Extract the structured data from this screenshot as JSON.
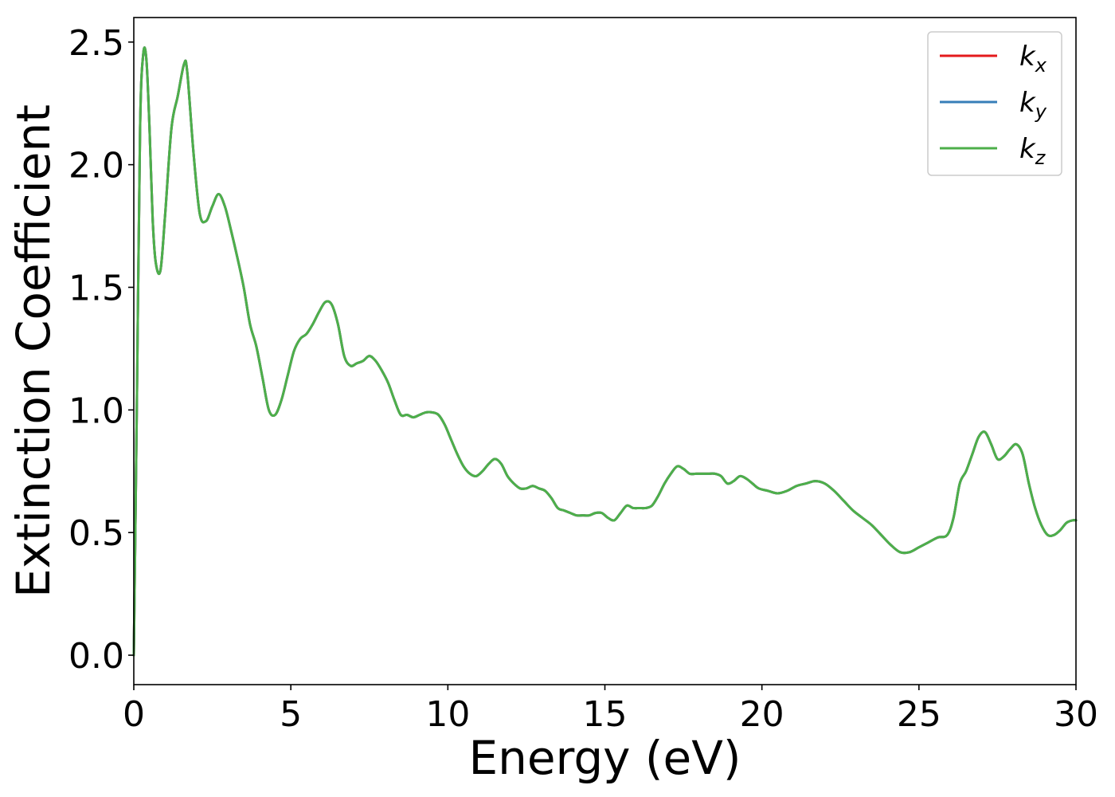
{
  "chart_data": {
    "type": "line",
    "title": "",
    "xlabel": "Energy (eV)",
    "ylabel": "Extinction Coefficient",
    "xlim": [
      0,
      30
    ],
    "ylim": [
      -0.12,
      2.6
    ],
    "xticks": [
      0,
      5,
      10,
      15,
      20,
      25,
      30
    ],
    "xtick_labels": [
      "0",
      "5",
      "10",
      "15",
      "20",
      "25",
      "30"
    ],
    "yticks": [
      0.0,
      0.5,
      1.0,
      1.5,
      2.0,
      2.5
    ],
    "ytick_labels": [
      "0.0",
      "0.5",
      "1.0",
      "1.5",
      "2.0",
      "2.5"
    ],
    "grid": false,
    "legend_position": "top-right",
    "x": [
      0,
      0.1,
      0.2,
      0.3,
      0.4,
      0.5,
      0.6,
      0.7,
      0.85,
      1.0,
      1.2,
      1.4,
      1.6,
      1.7,
      1.9,
      2.1,
      2.3,
      2.5,
      2.7,
      2.9,
      3.1,
      3.3,
      3.5,
      3.7,
      3.9,
      4.1,
      4.3,
      4.5,
      4.7,
      4.9,
      5.1,
      5.3,
      5.5,
      5.7,
      5.9,
      6.1,
      6.3,
      6.5,
      6.7,
      6.9,
      7.1,
      7.3,
      7.5,
      7.7,
      7.9,
      8.1,
      8.3,
      8.5,
      8.7,
      8.9,
      9.1,
      9.3,
      9.5,
      9.7,
      9.9,
      10.1,
      10.3,
      10.5,
      10.7,
      10.9,
      11.1,
      11.3,
      11.5,
      11.7,
      11.9,
      12.1,
      12.3,
      12.5,
      12.7,
      12.9,
      13.1,
      13.3,
      13.5,
      13.7,
      13.9,
      14.1,
      14.3,
      14.5,
      14.7,
      14.9,
      15.1,
      15.3,
      15.5,
      15.7,
      15.9,
      16.1,
      16.3,
      16.5,
      16.7,
      16.9,
      17.1,
      17.3,
      17.5,
      17.7,
      17.9,
      18.1,
      18.3,
      18.5,
      18.7,
      18.9,
      19.1,
      19.3,
      19.5,
      19.7,
      19.9,
      20.2,
      20.5,
      20.8,
      21.1,
      21.4,
      21.7,
      22.0,
      22.3,
      22.6,
      22.9,
      23.2,
      23.5,
      23.8,
      24.1,
      24.4,
      24.7,
      25.0,
      25.3,
      25.6,
      25.9,
      26.1,
      26.3,
      26.5,
      26.7,
      26.9,
      27.1,
      27.3,
      27.5,
      27.7,
      27.9,
      28.1,
      28.3,
      28.5,
      28.7,
      28.9,
      29.1,
      29.3,
      29.5,
      29.7,
      29.9,
      30.0
    ],
    "series": [
      {
        "name": "k_x",
        "label_main": "k",
        "label_sub": "x",
        "color": "#e41a1c",
        "values": [
          0.0,
          1.05,
          2.15,
          2.45,
          2.43,
          2.15,
          1.78,
          1.6,
          1.57,
          1.8,
          2.15,
          2.28,
          2.41,
          2.38,
          2.05,
          1.8,
          1.77,
          1.83,
          1.88,
          1.83,
          1.73,
          1.62,
          1.5,
          1.35,
          1.26,
          1.13,
          1.0,
          0.98,
          1.04,
          1.14,
          1.24,
          1.29,
          1.31,
          1.35,
          1.4,
          1.44,
          1.43,
          1.35,
          1.22,
          1.18,
          1.19,
          1.2,
          1.22,
          1.2,
          1.16,
          1.11,
          1.04,
          0.98,
          0.98,
          0.97,
          0.98,
          0.99,
          0.99,
          0.98,
          0.94,
          0.88,
          0.82,
          0.77,
          0.74,
          0.73,
          0.75,
          0.78,
          0.8,
          0.78,
          0.73,
          0.7,
          0.68,
          0.68,
          0.69,
          0.68,
          0.67,
          0.64,
          0.6,
          0.59,
          0.58,
          0.57,
          0.57,
          0.57,
          0.58,
          0.58,
          0.56,
          0.55,
          0.58,
          0.61,
          0.6,
          0.6,
          0.6,
          0.61,
          0.65,
          0.7,
          0.74,
          0.77,
          0.76,
          0.74,
          0.74,
          0.74,
          0.74,
          0.74,
          0.73,
          0.7,
          0.71,
          0.73,
          0.72,
          0.7,
          0.68,
          0.67,
          0.66,
          0.67,
          0.69,
          0.7,
          0.71,
          0.7,
          0.67,
          0.63,
          0.59,
          0.56,
          0.53,
          0.49,
          0.45,
          0.42,
          0.42,
          0.44,
          0.46,
          0.48,
          0.49,
          0.56,
          0.7,
          0.75,
          0.82,
          0.89,
          0.91,
          0.86,
          0.8,
          0.81,
          0.84,
          0.86,
          0.82,
          0.7,
          0.6,
          0.53,
          0.49,
          0.49,
          0.51,
          0.54,
          0.55,
          0.55
        ]
      },
      {
        "name": "k_y",
        "label_main": "k",
        "label_sub": "y",
        "color": "#377eb8",
        "values": [
          0.0,
          1.05,
          2.15,
          2.45,
          2.43,
          2.15,
          1.78,
          1.6,
          1.57,
          1.8,
          2.15,
          2.28,
          2.41,
          2.38,
          2.05,
          1.8,
          1.77,
          1.83,
          1.88,
          1.83,
          1.73,
          1.62,
          1.5,
          1.35,
          1.26,
          1.13,
          1.0,
          0.98,
          1.04,
          1.14,
          1.24,
          1.29,
          1.31,
          1.35,
          1.4,
          1.44,
          1.43,
          1.35,
          1.22,
          1.18,
          1.19,
          1.2,
          1.22,
          1.2,
          1.16,
          1.11,
          1.04,
          0.98,
          0.98,
          0.97,
          0.98,
          0.99,
          0.99,
          0.98,
          0.94,
          0.88,
          0.82,
          0.77,
          0.74,
          0.73,
          0.75,
          0.78,
          0.8,
          0.78,
          0.73,
          0.7,
          0.68,
          0.68,
          0.69,
          0.68,
          0.67,
          0.64,
          0.6,
          0.59,
          0.58,
          0.57,
          0.57,
          0.57,
          0.58,
          0.58,
          0.56,
          0.55,
          0.58,
          0.61,
          0.6,
          0.6,
          0.6,
          0.61,
          0.65,
          0.7,
          0.74,
          0.77,
          0.76,
          0.74,
          0.74,
          0.74,
          0.74,
          0.74,
          0.73,
          0.7,
          0.71,
          0.73,
          0.72,
          0.7,
          0.68,
          0.67,
          0.66,
          0.67,
          0.69,
          0.7,
          0.71,
          0.7,
          0.67,
          0.63,
          0.59,
          0.56,
          0.53,
          0.49,
          0.45,
          0.42,
          0.42,
          0.44,
          0.46,
          0.48,
          0.49,
          0.56,
          0.7,
          0.75,
          0.82,
          0.89,
          0.91,
          0.86,
          0.8,
          0.81,
          0.84,
          0.86,
          0.82,
          0.7,
          0.6,
          0.53,
          0.49,
          0.49,
          0.51,
          0.54,
          0.55,
          0.55
        ]
      },
      {
        "name": "k_z",
        "label_main": "k",
        "label_sub": "z",
        "color": "#4daf4a",
        "values": [
          0.0,
          1.05,
          2.15,
          2.45,
          2.43,
          2.15,
          1.78,
          1.6,
          1.57,
          1.8,
          2.15,
          2.28,
          2.41,
          2.38,
          2.05,
          1.8,
          1.77,
          1.83,
          1.88,
          1.83,
          1.73,
          1.62,
          1.5,
          1.35,
          1.26,
          1.13,
          1.0,
          0.98,
          1.04,
          1.14,
          1.24,
          1.29,
          1.31,
          1.35,
          1.4,
          1.44,
          1.43,
          1.35,
          1.22,
          1.18,
          1.19,
          1.2,
          1.22,
          1.2,
          1.16,
          1.11,
          1.04,
          0.98,
          0.98,
          0.97,
          0.98,
          0.99,
          0.99,
          0.98,
          0.94,
          0.88,
          0.82,
          0.77,
          0.74,
          0.73,
          0.75,
          0.78,
          0.8,
          0.78,
          0.73,
          0.7,
          0.68,
          0.68,
          0.69,
          0.68,
          0.67,
          0.64,
          0.6,
          0.59,
          0.58,
          0.57,
          0.57,
          0.57,
          0.58,
          0.58,
          0.56,
          0.55,
          0.58,
          0.61,
          0.6,
          0.6,
          0.6,
          0.61,
          0.65,
          0.7,
          0.74,
          0.77,
          0.76,
          0.74,
          0.74,
          0.74,
          0.74,
          0.74,
          0.73,
          0.7,
          0.71,
          0.73,
          0.72,
          0.7,
          0.68,
          0.67,
          0.66,
          0.67,
          0.69,
          0.7,
          0.71,
          0.7,
          0.67,
          0.63,
          0.59,
          0.56,
          0.53,
          0.49,
          0.45,
          0.42,
          0.42,
          0.44,
          0.46,
          0.48,
          0.49,
          0.56,
          0.7,
          0.75,
          0.82,
          0.89,
          0.91,
          0.86,
          0.8,
          0.81,
          0.84,
          0.86,
          0.82,
          0.7,
          0.6,
          0.53,
          0.49,
          0.49,
          0.51,
          0.54,
          0.55,
          0.55
        ]
      }
    ]
  }
}
